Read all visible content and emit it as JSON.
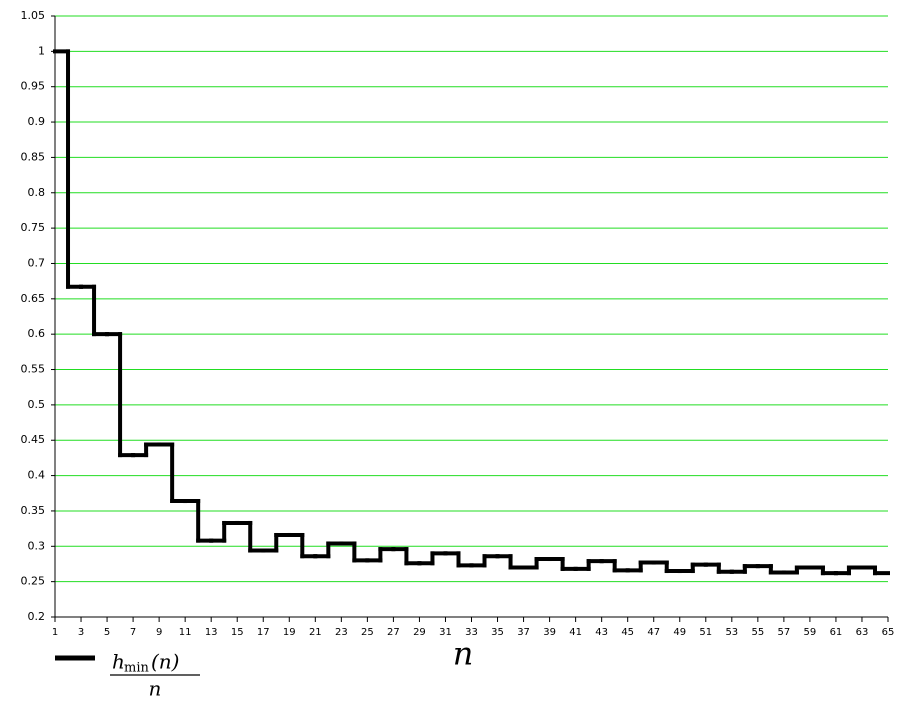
{
  "chart_data": {
    "type": "step",
    "x_label": "n",
    "legend_label": {
      "numerator_base": "h",
      "numerator_sub": "min",
      "numerator_rest": "(n)",
      "denominator": "n"
    },
    "x": [
      1,
      2,
      3,
      4,
      5,
      6,
      7,
      8,
      9,
      10,
      11,
      12,
      13,
      14,
      15,
      16,
      17,
      18,
      19,
      20,
      21,
      22,
      23,
      24,
      25,
      26,
      27,
      28,
      29,
      30,
      31,
      32,
      33,
      34,
      35,
      36,
      37,
      38,
      39,
      40,
      41,
      42,
      43,
      44,
      45,
      46,
      47,
      48,
      49,
      50,
      51,
      52,
      53,
      54,
      55,
      56,
      57,
      58,
      59,
      60,
      61,
      62,
      63,
      64
    ],
    "series": [
      {
        "color": "#000000",
        "values": [
          1,
          0.667,
          0.667,
          0.6,
          0.6,
          0.429,
          0.429,
          0.444,
          0.444,
          0.364,
          0.364,
          0.308,
          0.308,
          0.333,
          0.333,
          0.294,
          0.294,
          0.316,
          0.316,
          0.286,
          0.286,
          0.304,
          0.304,
          0.28,
          0.28,
          0.296,
          0.296,
          0.276,
          0.276,
          0.29,
          0.29,
          0.273,
          0.273,
          0.286,
          0.286,
          0.27,
          0.27,
          0.282,
          0.282,
          0.268,
          0.268,
          0.279,
          0.279,
          0.266,
          0.266,
          0.277,
          0.277,
          0.265,
          0.265,
          0.274,
          0.274,
          0.264,
          0.264,
          0.272,
          0.272,
          0.263,
          0.263,
          0.27,
          0.27,
          0.262,
          0.262,
          0.27,
          0.27,
          0.262
        ]
      }
    ],
    "xlim": [
      1,
      65
    ],
    "xticks": [
      1,
      3,
      5,
      7,
      9,
      11,
      13,
      15,
      17,
      19,
      21,
      23,
      25,
      27,
      29,
      31,
      33,
      35,
      37,
      39,
      41,
      43,
      45,
      47,
      49,
      51,
      53,
      55,
      57,
      59,
      61,
      63,
      65
    ],
    "ylim": [
      0.2,
      1.05
    ],
    "yticks": [
      0.2,
      0.25,
      0.3,
      0.35,
      0.4,
      0.45,
      0.5,
      0.55,
      0.6,
      0.65,
      0.7,
      0.75,
      0.8,
      0.85,
      0.9,
      0.95,
      1,
      1.05
    ],
    "grid": true,
    "grid_color": "#22dd22"
  }
}
